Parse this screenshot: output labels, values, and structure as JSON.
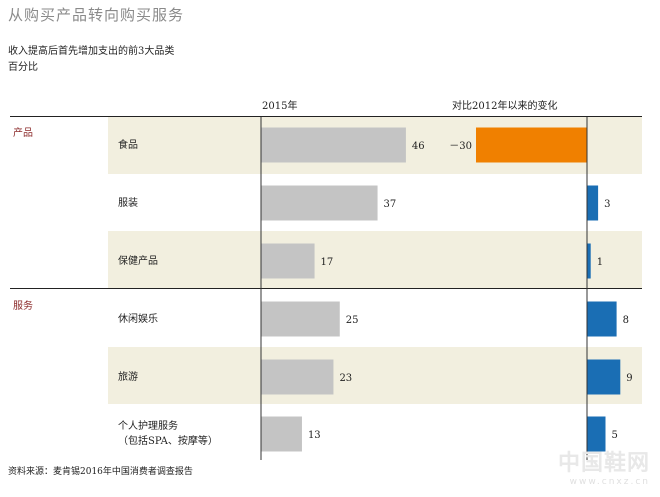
{
  "title": "从购买产品转向购买服务",
  "subtitle_line1": "收入提高后首先增加支出的前3大品类",
  "subtitle_line2": "百分比",
  "footer": "资料来源：麦肯锡2016年中国消费者调查报告",
  "watermark": {
    "text": "中国鞋网",
    "url": "www.cnxz.cn"
  },
  "colors": {
    "gray_bar": "#c4c4c4",
    "negative": "#f08000",
    "positive": "#1a6eb4",
    "band": "#f2efdf",
    "section_text": "#8b2a2a"
  },
  "chart_data": {
    "type": "bar",
    "title": "从购买产品转向购买服务",
    "subtitle": "收入提高后首先增加支出的前3大品类 百分比",
    "groups": [
      {
        "name": "产品",
        "categories": [
          "食品",
          "服装",
          "保健产品"
        ]
      },
      {
        "name": "服务",
        "categories": [
          "休闲娱乐",
          "旅游",
          "个人护理服务（包括SPA、按摩等）"
        ]
      }
    ],
    "categories": [
      "食品",
      "服装",
      "保健产品",
      "休闲娱乐",
      "旅游",
      "个人护理服务（包括SPA、按摩等）"
    ],
    "category_lines": [
      [
        "食品"
      ],
      [
        "服装"
      ],
      [
        "保健产品"
      ],
      [
        "休闲娱乐"
      ],
      [
        "旅游"
      ],
      [
        "个人护理服务",
        "（包括SPA、按摩等）"
      ]
    ],
    "series": [
      {
        "name": "2015年",
        "values": [
          46,
          37,
          17,
          25,
          23,
          13
        ],
        "value_labels": [
          "46",
          "37",
          "17",
          "25",
          "23",
          "13"
        ]
      },
      {
        "name": "对比2012年以来的变化",
        "values": [
          -30,
          3,
          1,
          8,
          9,
          5
        ],
        "value_labels": [
          "－30",
          "3",
          "1",
          "8",
          "9",
          "5"
        ]
      }
    ]
  }
}
